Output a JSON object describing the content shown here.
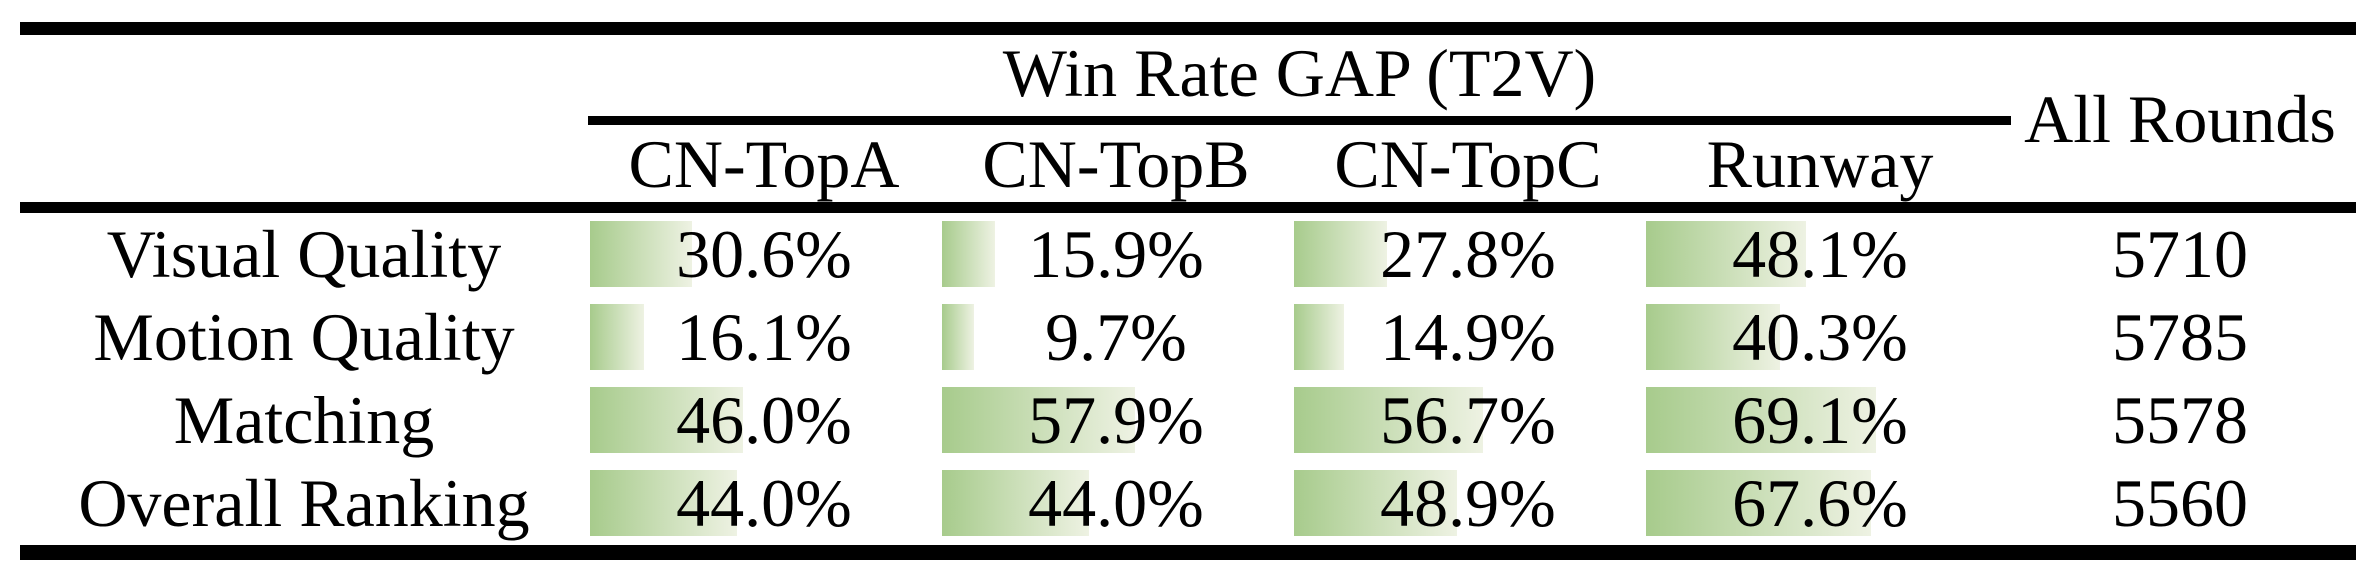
{
  "theme": {
    "page_bg": "#ffffff",
    "text_color": "#000000",
    "rule_color": "#000000",
    "bar_gradient_start": "#a7cb8c",
    "bar_gradient_end": "#eef2e3"
  },
  "table": {
    "group_header": "Win Rate GAP (T2V)",
    "all_rounds_header": "All Rounds",
    "columns": [
      "CN-TopA",
      "CN-TopB",
      "CN-TopC",
      "Runway"
    ],
    "rows": [
      {
        "label": "Visual Quality",
        "cells": [
          {
            "value": 30.6,
            "label": "30.6%"
          },
          {
            "value": 15.9,
            "label": "15.9%"
          },
          {
            "value": 27.8,
            "label": "27.8%"
          },
          {
            "value": 48.1,
            "label": "48.1%"
          }
        ],
        "all_rounds": "5710"
      },
      {
        "label": "Motion Quality",
        "cells": [
          {
            "value": 16.1,
            "label": "16.1%"
          },
          {
            "value": 9.7,
            "label": "9.7%"
          },
          {
            "value": 14.9,
            "label": "14.9%"
          },
          {
            "value": 40.3,
            "label": "40.3%"
          }
        ],
        "all_rounds": "5785"
      },
      {
        "label": "Matching",
        "cells": [
          {
            "value": 46.0,
            "label": "46.0%"
          },
          {
            "value": 57.9,
            "label": "57.9%"
          },
          {
            "value": 56.7,
            "label": "56.7%"
          },
          {
            "value": 69.1,
            "label": "69.1%"
          }
        ],
        "all_rounds": "5578"
      },
      {
        "label": "Overall Ranking",
        "cells": [
          {
            "value": 44.0,
            "label": "44.0%"
          },
          {
            "value": 44.0,
            "label": "44.0%"
          },
          {
            "value": 48.9,
            "label": "48.9%"
          },
          {
            "value": 67.6,
            "label": "67.6%"
          }
        ],
        "all_rounds": "5560"
      }
    ]
  }
}
